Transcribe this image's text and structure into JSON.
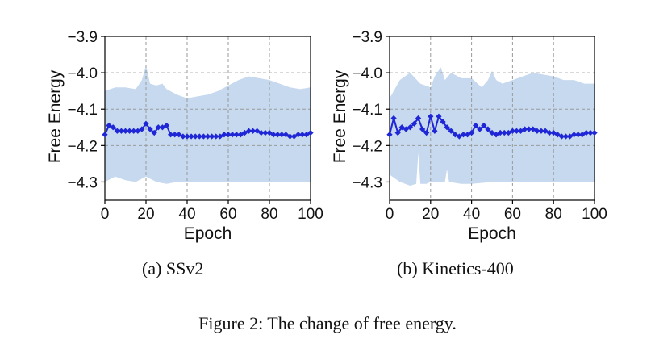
{
  "figure_caption": "Figure 2: The change of free energy.",
  "subcaptions": [
    "(a)  SSv2",
    "(b)  Kinetics-400"
  ],
  "colors": {
    "band": "#c6d9ef",
    "line": "#1f26d6",
    "grid": "#9a9a9a",
    "axis": "#000000"
  },
  "chart_data": [
    {
      "type": "line",
      "title": "",
      "xlabel": "Epoch",
      "ylabel": "Free Energy",
      "xlim": [
        0,
        100
      ],
      "ylim": [
        -4.35,
        -3.9
      ],
      "xticks": [
        0,
        20,
        40,
        60,
        80,
        100
      ],
      "xtick_labels": [
        "0",
        "20",
        "40",
        "60",
        "80",
        "100"
      ],
      "yticks": [
        -3.9,
        -4.0,
        -4.1,
        -4.2,
        -4.3
      ],
      "ytick_labels": [
        "−3.9",
        "−4.0",
        "−4.1",
        "−4.2",
        "−4.3"
      ],
      "grid": true,
      "band_upper": [
        [
          0,
          -4.05
        ],
        [
          5,
          -4.04
        ],
        [
          10,
          -4.04
        ],
        [
          15,
          -4.045
        ],
        [
          18,
          -4.02
        ],
        [
          20,
          -3.98
        ],
        [
          22,
          -4.03
        ],
        [
          25,
          -4.035
        ],
        [
          28,
          -4.03
        ],
        [
          30,
          -4.045
        ],
        [
          35,
          -4.06
        ],
        [
          40,
          -4.07
        ],
        [
          45,
          -4.065
        ],
        [
          50,
          -4.06
        ],
        [
          55,
          -4.05
        ],
        [
          60,
          -4.035
        ],
        [
          65,
          -4.02
        ],
        [
          70,
          -4.01
        ],
        [
          75,
          -4.015
        ],
        [
          80,
          -4.02
        ],
        [
          85,
          -4.03
        ],
        [
          90,
          -4.04
        ],
        [
          95,
          -4.045
        ],
        [
          100,
          -4.04
        ]
      ],
      "band_lower": [
        [
          0,
          -4.3
        ],
        [
          5,
          -4.285
        ],
        [
          10,
          -4.295
        ],
        [
          15,
          -4.3
        ],
        [
          20,
          -4.285
        ],
        [
          25,
          -4.3
        ],
        [
          30,
          -4.305
        ],
        [
          35,
          -4.3
        ],
        [
          40,
          -4.3
        ],
        [
          50,
          -4.3
        ],
        [
          60,
          -4.3
        ],
        [
          70,
          -4.3
        ],
        [
          80,
          -4.3
        ],
        [
          90,
          -4.3
        ],
        [
          100,
          -4.3
        ]
      ],
      "series": [
        {
          "x": [
            0,
            2,
            4,
            6,
            8,
            10,
            12,
            14,
            16,
            18,
            20,
            22,
            24,
            26,
            28,
            30,
            32,
            34,
            36,
            38,
            40,
            42,
            44,
            46,
            48,
            50,
            52,
            54,
            56,
            58,
            60,
            62,
            64,
            66,
            68,
            70,
            72,
            74,
            76,
            78,
            80,
            82,
            84,
            86,
            88,
            90,
            92,
            94,
            96,
            98,
            100
          ],
          "values": [
            -4.17,
            -4.145,
            -4.15,
            -4.16,
            -4.16,
            -4.16,
            -4.16,
            -4.16,
            -4.16,
            -4.155,
            -4.14,
            -4.155,
            -4.165,
            -4.15,
            -4.15,
            -4.145,
            -4.17,
            -4.17,
            -4.17,
            -4.175,
            -4.175,
            -4.175,
            -4.175,
            -4.175,
            -4.175,
            -4.175,
            -4.175,
            -4.175,
            -4.175,
            -4.17,
            -4.17,
            -4.17,
            -4.17,
            -4.17,
            -4.165,
            -4.16,
            -4.16,
            -4.16,
            -4.165,
            -4.165,
            -4.165,
            -4.17,
            -4.17,
            -4.17,
            -4.17,
            -4.175,
            -4.175,
            -4.17,
            -4.17,
            -4.17,
            -4.165
          ]
        }
      ]
    },
    {
      "type": "line",
      "title": "",
      "xlabel": "Epoch",
      "ylabel": "Free Energy",
      "xlim": [
        0,
        100
      ],
      "ylim": [
        -4.35,
        -3.9
      ],
      "xticks": [
        0,
        20,
        40,
        60,
        80,
        100
      ],
      "xtick_labels": [
        "0",
        "20",
        "40",
        "60",
        "80",
        "100"
      ],
      "yticks": [
        -3.9,
        -4.0,
        -4.1,
        -4.2,
        -4.3
      ],
      "ytick_labels": [
        "−3.9",
        "−4.0",
        "−4.1",
        "−4.2",
        "−4.3"
      ],
      "grid": true,
      "band_upper": [
        [
          0,
          -4.07
        ],
        [
          5,
          -4.02
        ],
        [
          10,
          -4.0
        ],
        [
          15,
          -4.03
        ],
        [
          20,
          -4.04
        ],
        [
          22,
          -4.01
        ],
        [
          25,
          -3.985
        ],
        [
          27,
          -4.02
        ],
        [
          30,
          -4.0
        ],
        [
          35,
          -4.015
        ],
        [
          40,
          -4.015
        ],
        [
          45,
          -4.04
        ],
        [
          48,
          -4.02
        ],
        [
          50,
          -3.995
        ],
        [
          52,
          -4.02
        ],
        [
          55,
          -4.03
        ],
        [
          60,
          -4.02
        ],
        [
          65,
          -4.01
        ],
        [
          70,
          -4.0
        ],
        [
          75,
          -4.005
        ],
        [
          80,
          -4.01
        ],
        [
          85,
          -4.02
        ],
        [
          90,
          -4.02
        ],
        [
          95,
          -4.03
        ],
        [
          100,
          -4.03
        ]
      ],
      "band_lower": [
        [
          0,
          -4.28
        ],
        [
          5,
          -4.3
        ],
        [
          10,
          -4.31
        ],
        [
          13,
          -4.305
        ],
        [
          14,
          -4.22
        ],
        [
          15,
          -4.305
        ],
        [
          18,
          -4.305
        ],
        [
          20,
          -4.3
        ],
        [
          25,
          -4.3
        ],
        [
          27,
          -4.3
        ],
        [
          28,
          -4.265
        ],
        [
          29,
          -4.3
        ],
        [
          35,
          -4.305
        ],
        [
          40,
          -4.305
        ],
        [
          50,
          -4.3
        ],
        [
          60,
          -4.3
        ],
        [
          70,
          -4.3
        ],
        [
          80,
          -4.3
        ],
        [
          90,
          -4.3
        ],
        [
          100,
          -4.3
        ]
      ],
      "series": [
        {
          "x": [
            0,
            2,
            4,
            6,
            8,
            10,
            12,
            14,
            16,
            18,
            20,
            22,
            24,
            26,
            28,
            30,
            32,
            34,
            36,
            38,
            40,
            42,
            44,
            46,
            48,
            50,
            52,
            54,
            56,
            58,
            60,
            62,
            64,
            66,
            68,
            70,
            72,
            74,
            76,
            78,
            80,
            82,
            84,
            86,
            88,
            90,
            92,
            94,
            96,
            98,
            100
          ],
          "values": [
            -4.17,
            -4.125,
            -4.165,
            -4.15,
            -4.155,
            -4.15,
            -4.14,
            -4.125,
            -4.155,
            -4.165,
            -4.12,
            -4.16,
            -4.12,
            -4.135,
            -4.15,
            -4.16,
            -4.17,
            -4.175,
            -4.17,
            -4.17,
            -4.165,
            -4.145,
            -4.155,
            -4.145,
            -4.155,
            -4.165,
            -4.17,
            -4.165,
            -4.165,
            -4.165,
            -4.16,
            -4.16,
            -4.16,
            -4.155,
            -4.155,
            -4.155,
            -4.16,
            -4.16,
            -4.16,
            -4.165,
            -4.165,
            -4.17,
            -4.175,
            -4.175,
            -4.175,
            -4.17,
            -4.17,
            -4.17,
            -4.165,
            -4.165,
            -4.165
          ]
        }
      ]
    }
  ]
}
